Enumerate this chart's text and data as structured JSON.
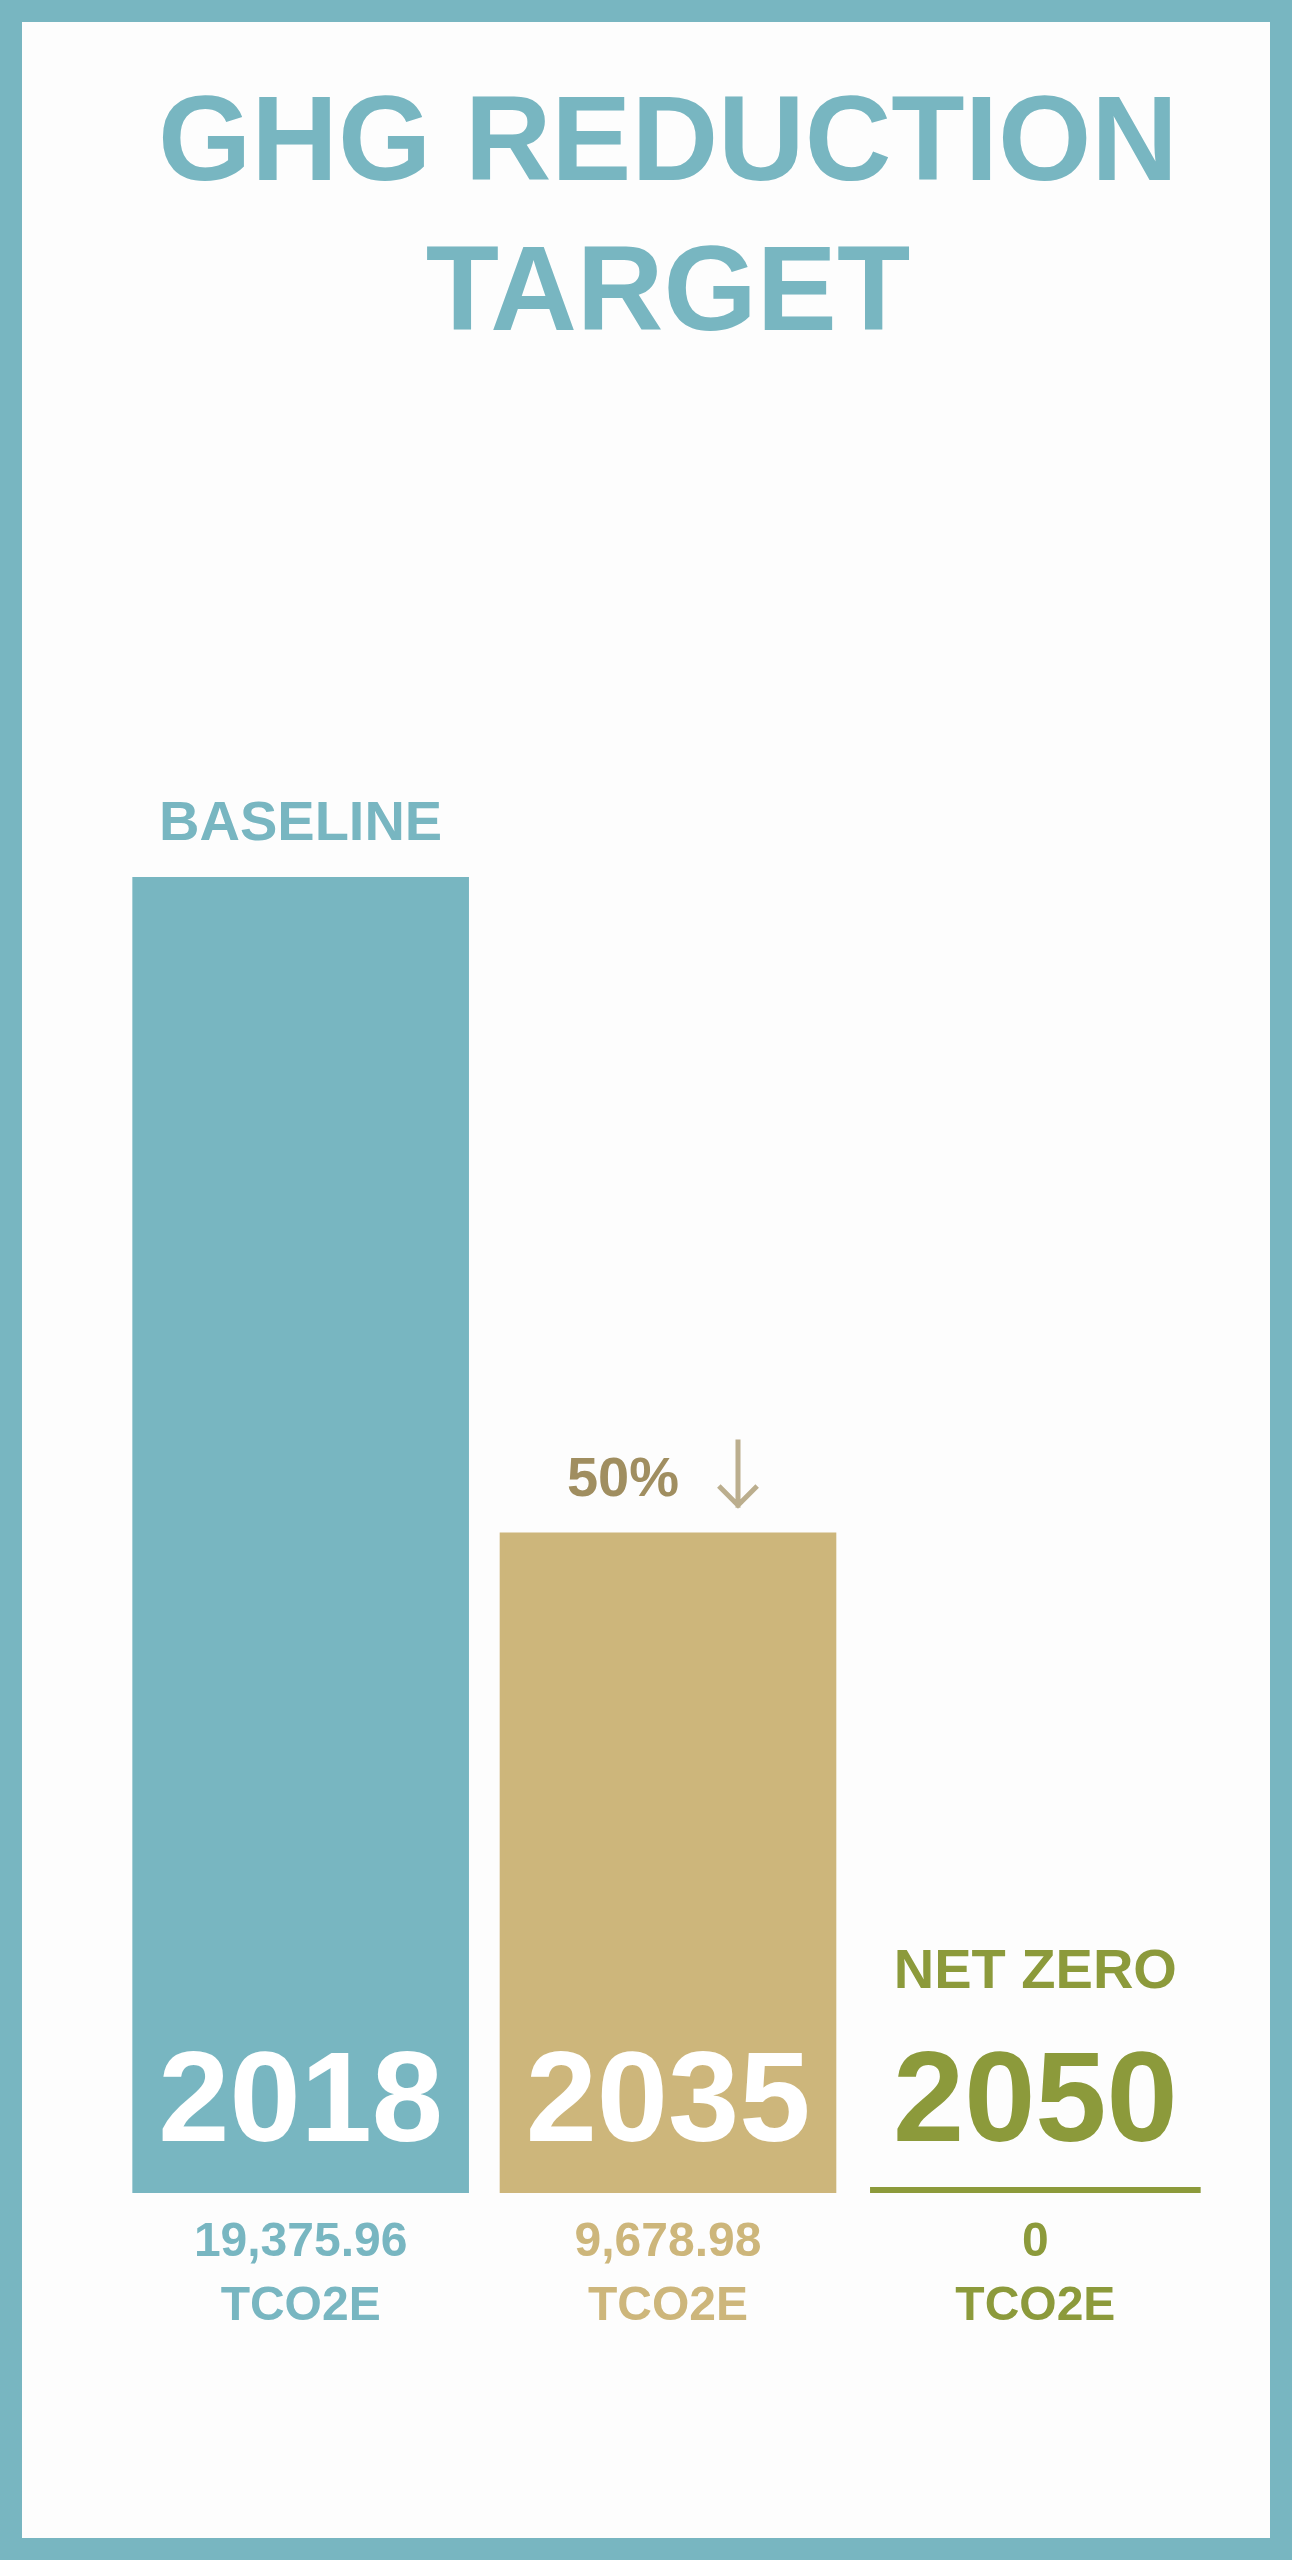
{
  "chart_data": {
    "type": "bar",
    "title": "GHG REDUCTION TARGET",
    "categories": [
      "2018",
      "2035",
      "2050"
    ],
    "values": [
      19375.96,
      9678.98,
      0
    ],
    "colors": [
      "#78b6c1",
      "#cdb67b",
      "#8c9a3b"
    ],
    "value_labels": [
      "19,375.96 TCO2E",
      "9,678.98 TCO2E",
      "0 TCO2E"
    ],
    "annotations": [
      {
        "text": "BASELINE",
        "x": "2018",
        "y": 19375.96
      },
      {
        "text": "50%",
        "x": "2035",
        "y": 9678.98
      },
      "NET ZERO"
    ]
  }
}
